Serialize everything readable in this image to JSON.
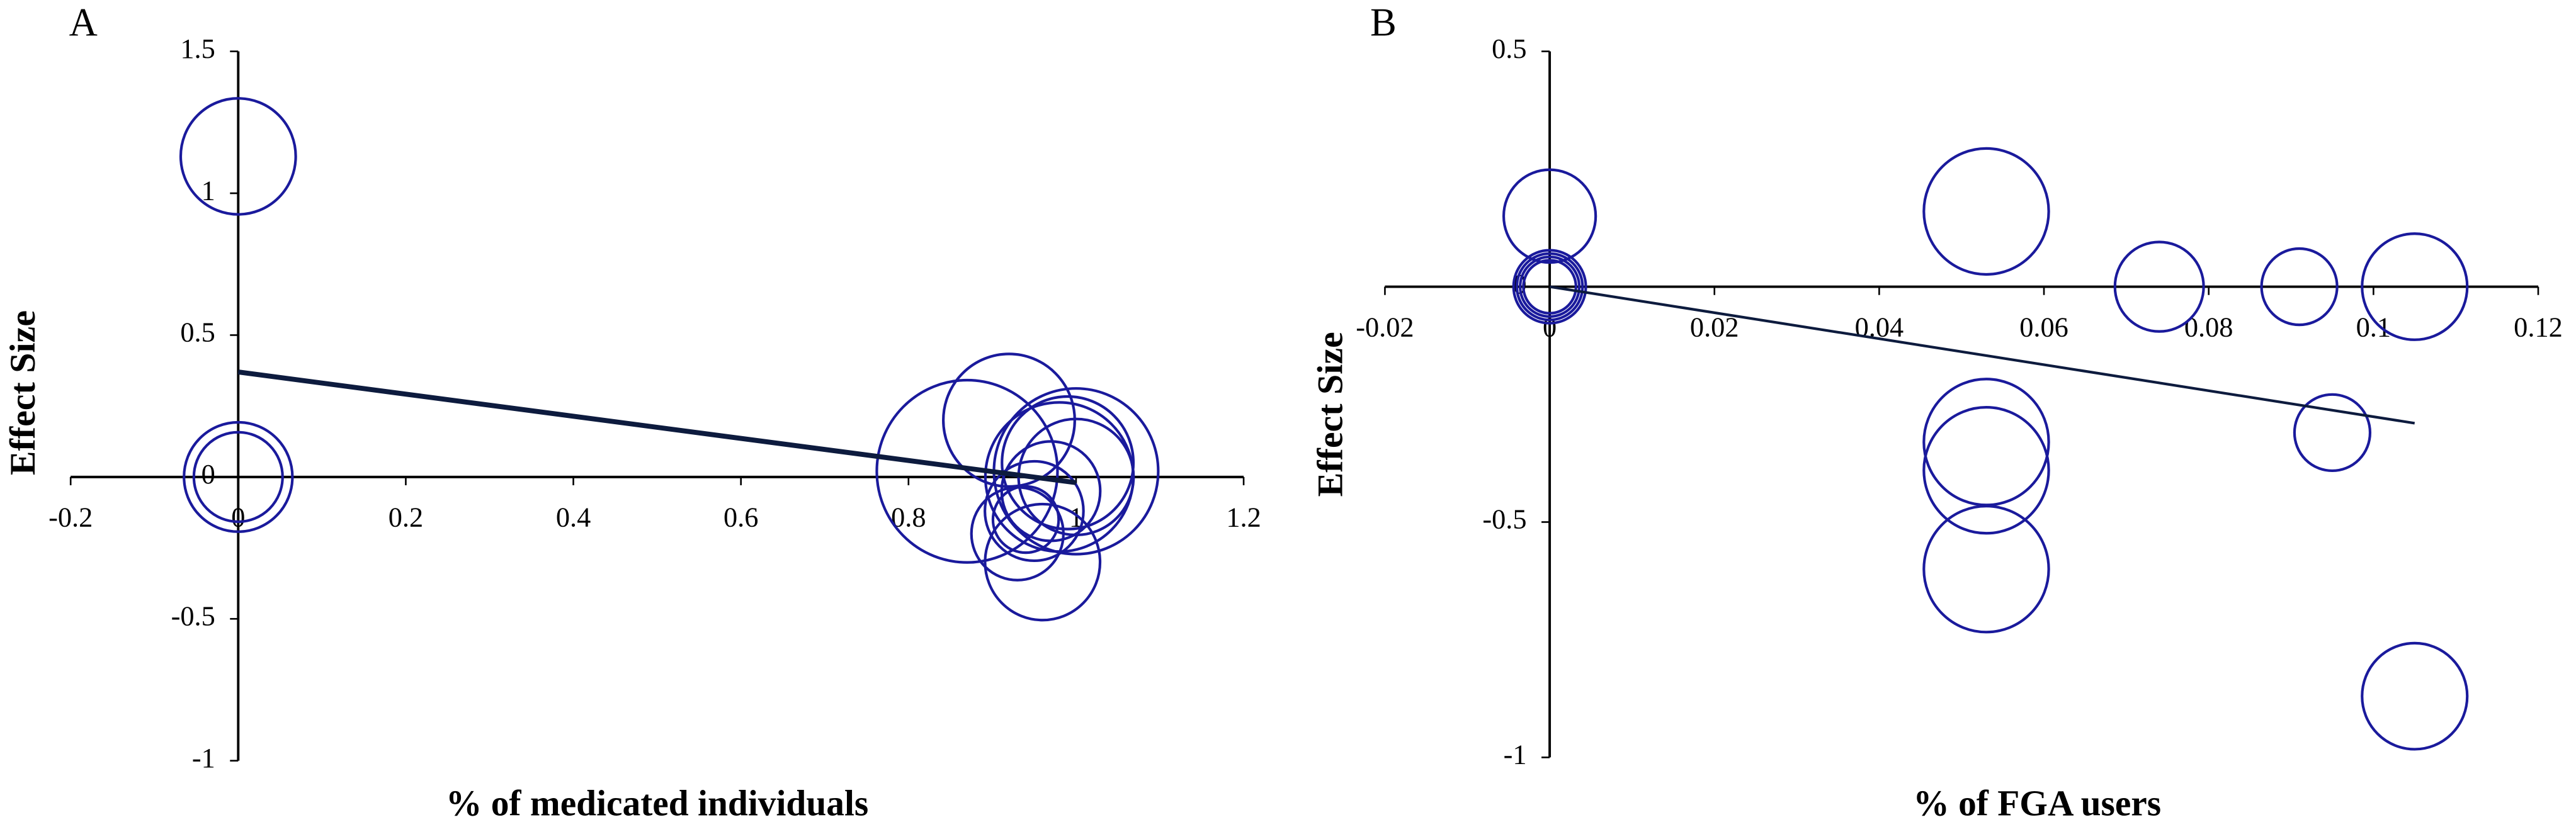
{
  "chart_data": [
    {
      "type": "bubble",
      "label": "A",
      "x_label": "% of medicated individuals",
      "y_label": "Effect Size",
      "xlim": [
        -0.2,
        1.2
      ],
      "ylim": [
        -1,
        1.5
      ],
      "xticks": [
        -0.2,
        0,
        0.2,
        0.4,
        0.6,
        0.8,
        1,
        1.2
      ],
      "yticks": [
        -1,
        -0.5,
        0,
        0.5,
        1,
        1.5
      ],
      "series": [
        {
          "color": "#1a1a9c",
          "x": [
            0,
            0,
            0,
            0.87,
            0.92,
            1.0,
            0.98,
            0.99,
            1.0,
            0.95,
            0.96,
            0.93,
            0.97,
            0.94
          ],
          "values": [
            1.13,
            0,
            0,
            0.02,
            0.2,
            0.02,
            0,
            0.05,
            0,
            -0.12,
            -0.3,
            -0.2,
            -0.05,
            -0.15
          ],
          "sizes": [
            35,
            33,
            27,
            55,
            40,
            50,
            45,
            40,
            35,
            30,
            35,
            28,
            30,
            20
          ]
        }
      ],
      "trendline": {
        "color": "#0d1b3e",
        "x": [
          0,
          1
        ],
        "values": [
          0.37,
          -0.02
        ]
      }
    },
    {
      "type": "bubble",
      "label": "B",
      "x_label": "% of FGA users",
      "y_label": "Effect Size",
      "xlim": [
        -0.02,
        0.12
      ],
      "ylim": [
        -1,
        0.5
      ],
      "xticks": [
        -0.02,
        0,
        0.02,
        0.04,
        0.06,
        0.08,
        0.1,
        0.12
      ],
      "yticks": [
        -1,
        -0.5,
        0,
        0.5
      ],
      "series": [
        {
          "color": "#1a1a9c",
          "x": [
            0,
            0,
            0,
            0,
            0,
            0.053,
            0.074,
            0.091,
            0.105,
            0.053,
            0.053,
            0.053,
            0.095,
            0.105
          ],
          "values": [
            0.15,
            0,
            0,
            0,
            0,
            0.16,
            0,
            0,
            0,
            -0.33,
            -0.39,
            -0.6,
            -0.31,
            -0.87
          ],
          "sizes": [
            28,
            22,
            20,
            18,
            16,
            38,
            27,
            23,
            32,
            38,
            38,
            38,
            23,
            32
          ]
        }
      ],
      "trendline": {
        "color": "#0d1b3e",
        "x": [
          0,
          0.105
        ],
        "values": [
          0,
          -0.29
        ]
      }
    }
  ]
}
